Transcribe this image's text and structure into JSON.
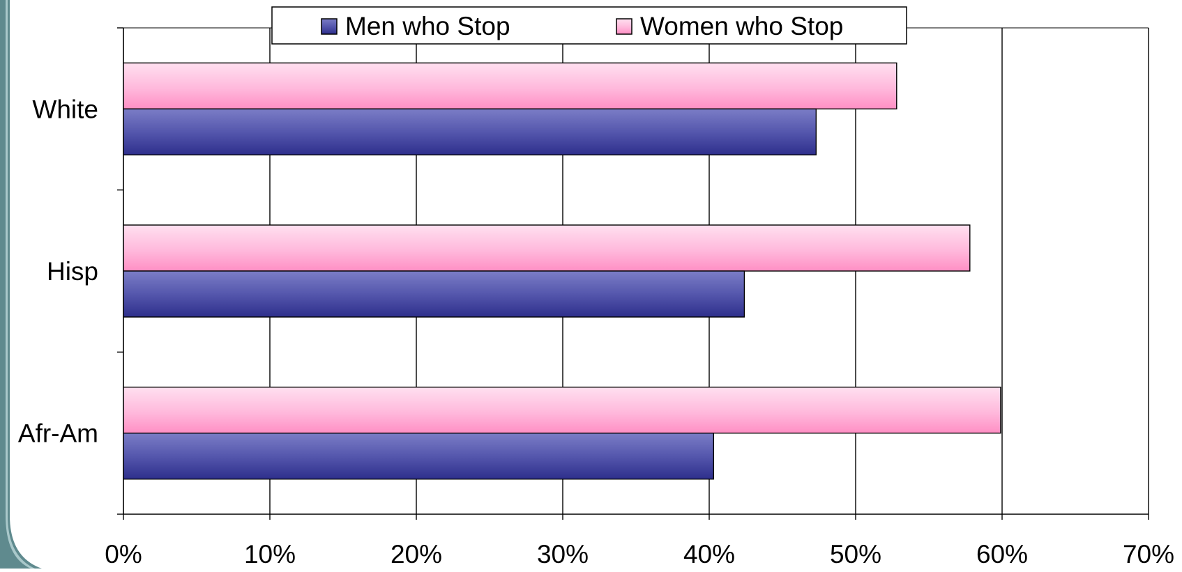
{
  "chart_data": {
    "type": "bar",
    "orientation": "horizontal",
    "categories": [
      "White",
      "Hisp",
      "Afr-Am"
    ],
    "series": [
      {
        "name": "Men who Stop",
        "values": [
          47.3,
          42.4,
          40.3
        ],
        "color": "#4a4ca5"
      },
      {
        "name": "Women who Stop",
        "values": [
          52.8,
          57.8,
          59.9
        ],
        "color": "#ff9fcd"
      }
    ],
    "x_ticks": [
      "0%",
      "10%",
      "20%",
      "30%",
      "40%",
      "50%",
      "60%",
      "70%"
    ],
    "xlim": [
      0,
      70
    ],
    "unit": "%",
    "grid": true,
    "legend_position": "top"
  },
  "colors": {
    "left_border": "#5f8a8e",
    "left_border_inner": "#a9c8ca"
  }
}
